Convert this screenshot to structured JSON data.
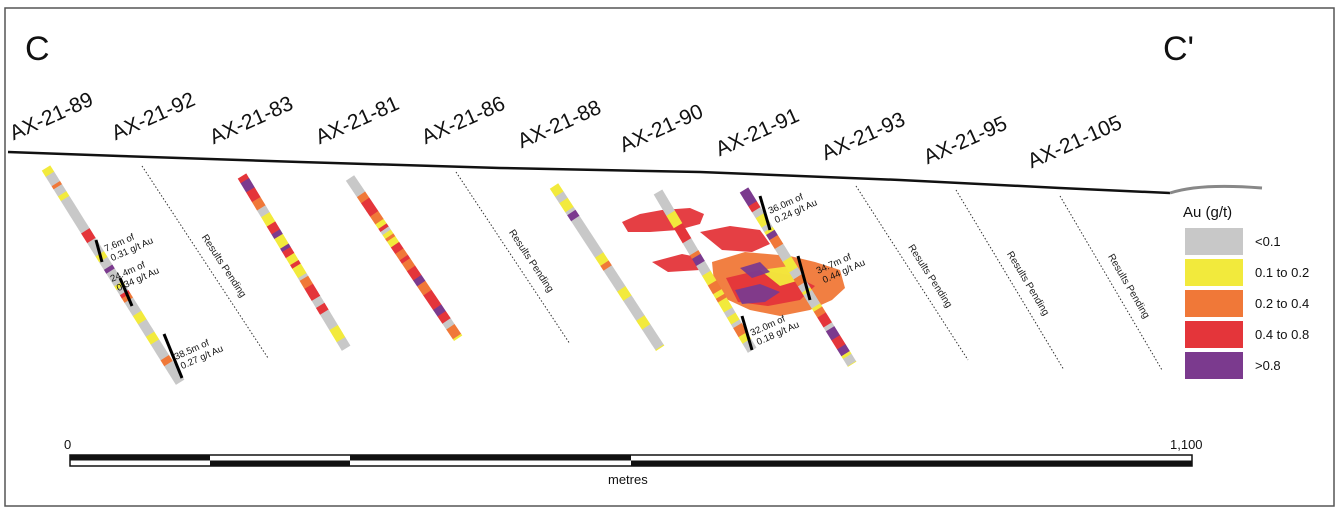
{
  "section": {
    "start_label": "C",
    "end_label": "C'"
  },
  "holes": [
    {
      "id": "AX-21-89",
      "status": "assayed"
    },
    {
      "id": "AX-21-92",
      "status": "Results Pending"
    },
    {
      "id": "AX-21-83",
      "status": "assayed"
    },
    {
      "id": "AX-21-81",
      "status": "assayed"
    },
    {
      "id": "AX-21-86",
      "status": "Results Pending"
    },
    {
      "id": "AX-21-88",
      "status": "assayed"
    },
    {
      "id": "AX-21-90",
      "status": "assayed"
    },
    {
      "id": "AX-21-91",
      "status": "assayed"
    },
    {
      "id": "AX-21-93",
      "status": "Results Pending"
    },
    {
      "id": "AX-21-95",
      "status": "Results Pending"
    },
    {
      "id": "AX-21-105",
      "status": "Results Pending"
    }
  ],
  "pending_text": "Results Pending",
  "intercepts": [
    {
      "hole": "AX-21-89",
      "line1": "7.6m of",
      "line2": "0.31 g/t Au"
    },
    {
      "hole": "AX-21-89",
      "line1": "24.4m of",
      "line2": "0.34 g/t Au"
    },
    {
      "hole": "AX-21-89",
      "line1": "38.5m of",
      "line2": "0.27 g/t Au"
    },
    {
      "hole": "AX-21-90",
      "line1": "32.0m of",
      "line2": "0.18 g/t Au"
    },
    {
      "hole": "AX-21-91",
      "line1": "36.0m of",
      "line2": "0.24 g/t Au"
    },
    {
      "hole": "AX-21-91",
      "line1": "34.7m of",
      "line2": "0.44 g/t Au"
    }
  ],
  "legend": {
    "title": "Au (g/t)",
    "items": [
      {
        "label": "<0.1",
        "color": "#c8c8c8"
      },
      {
        "label": "0.1 to 0.2",
        "color": "#f2ea3c"
      },
      {
        "label": "0.2 to 0.4",
        "color": "#f07838"
      },
      {
        "label": "0.4 to 0.8",
        "color": "#e4353a"
      },
      {
        "label": ">0.8",
        "color": "#7b3a8e"
      }
    ]
  },
  "scale": {
    "min_label": "0",
    "max_label": "1,100",
    "unit": "metres"
  }
}
